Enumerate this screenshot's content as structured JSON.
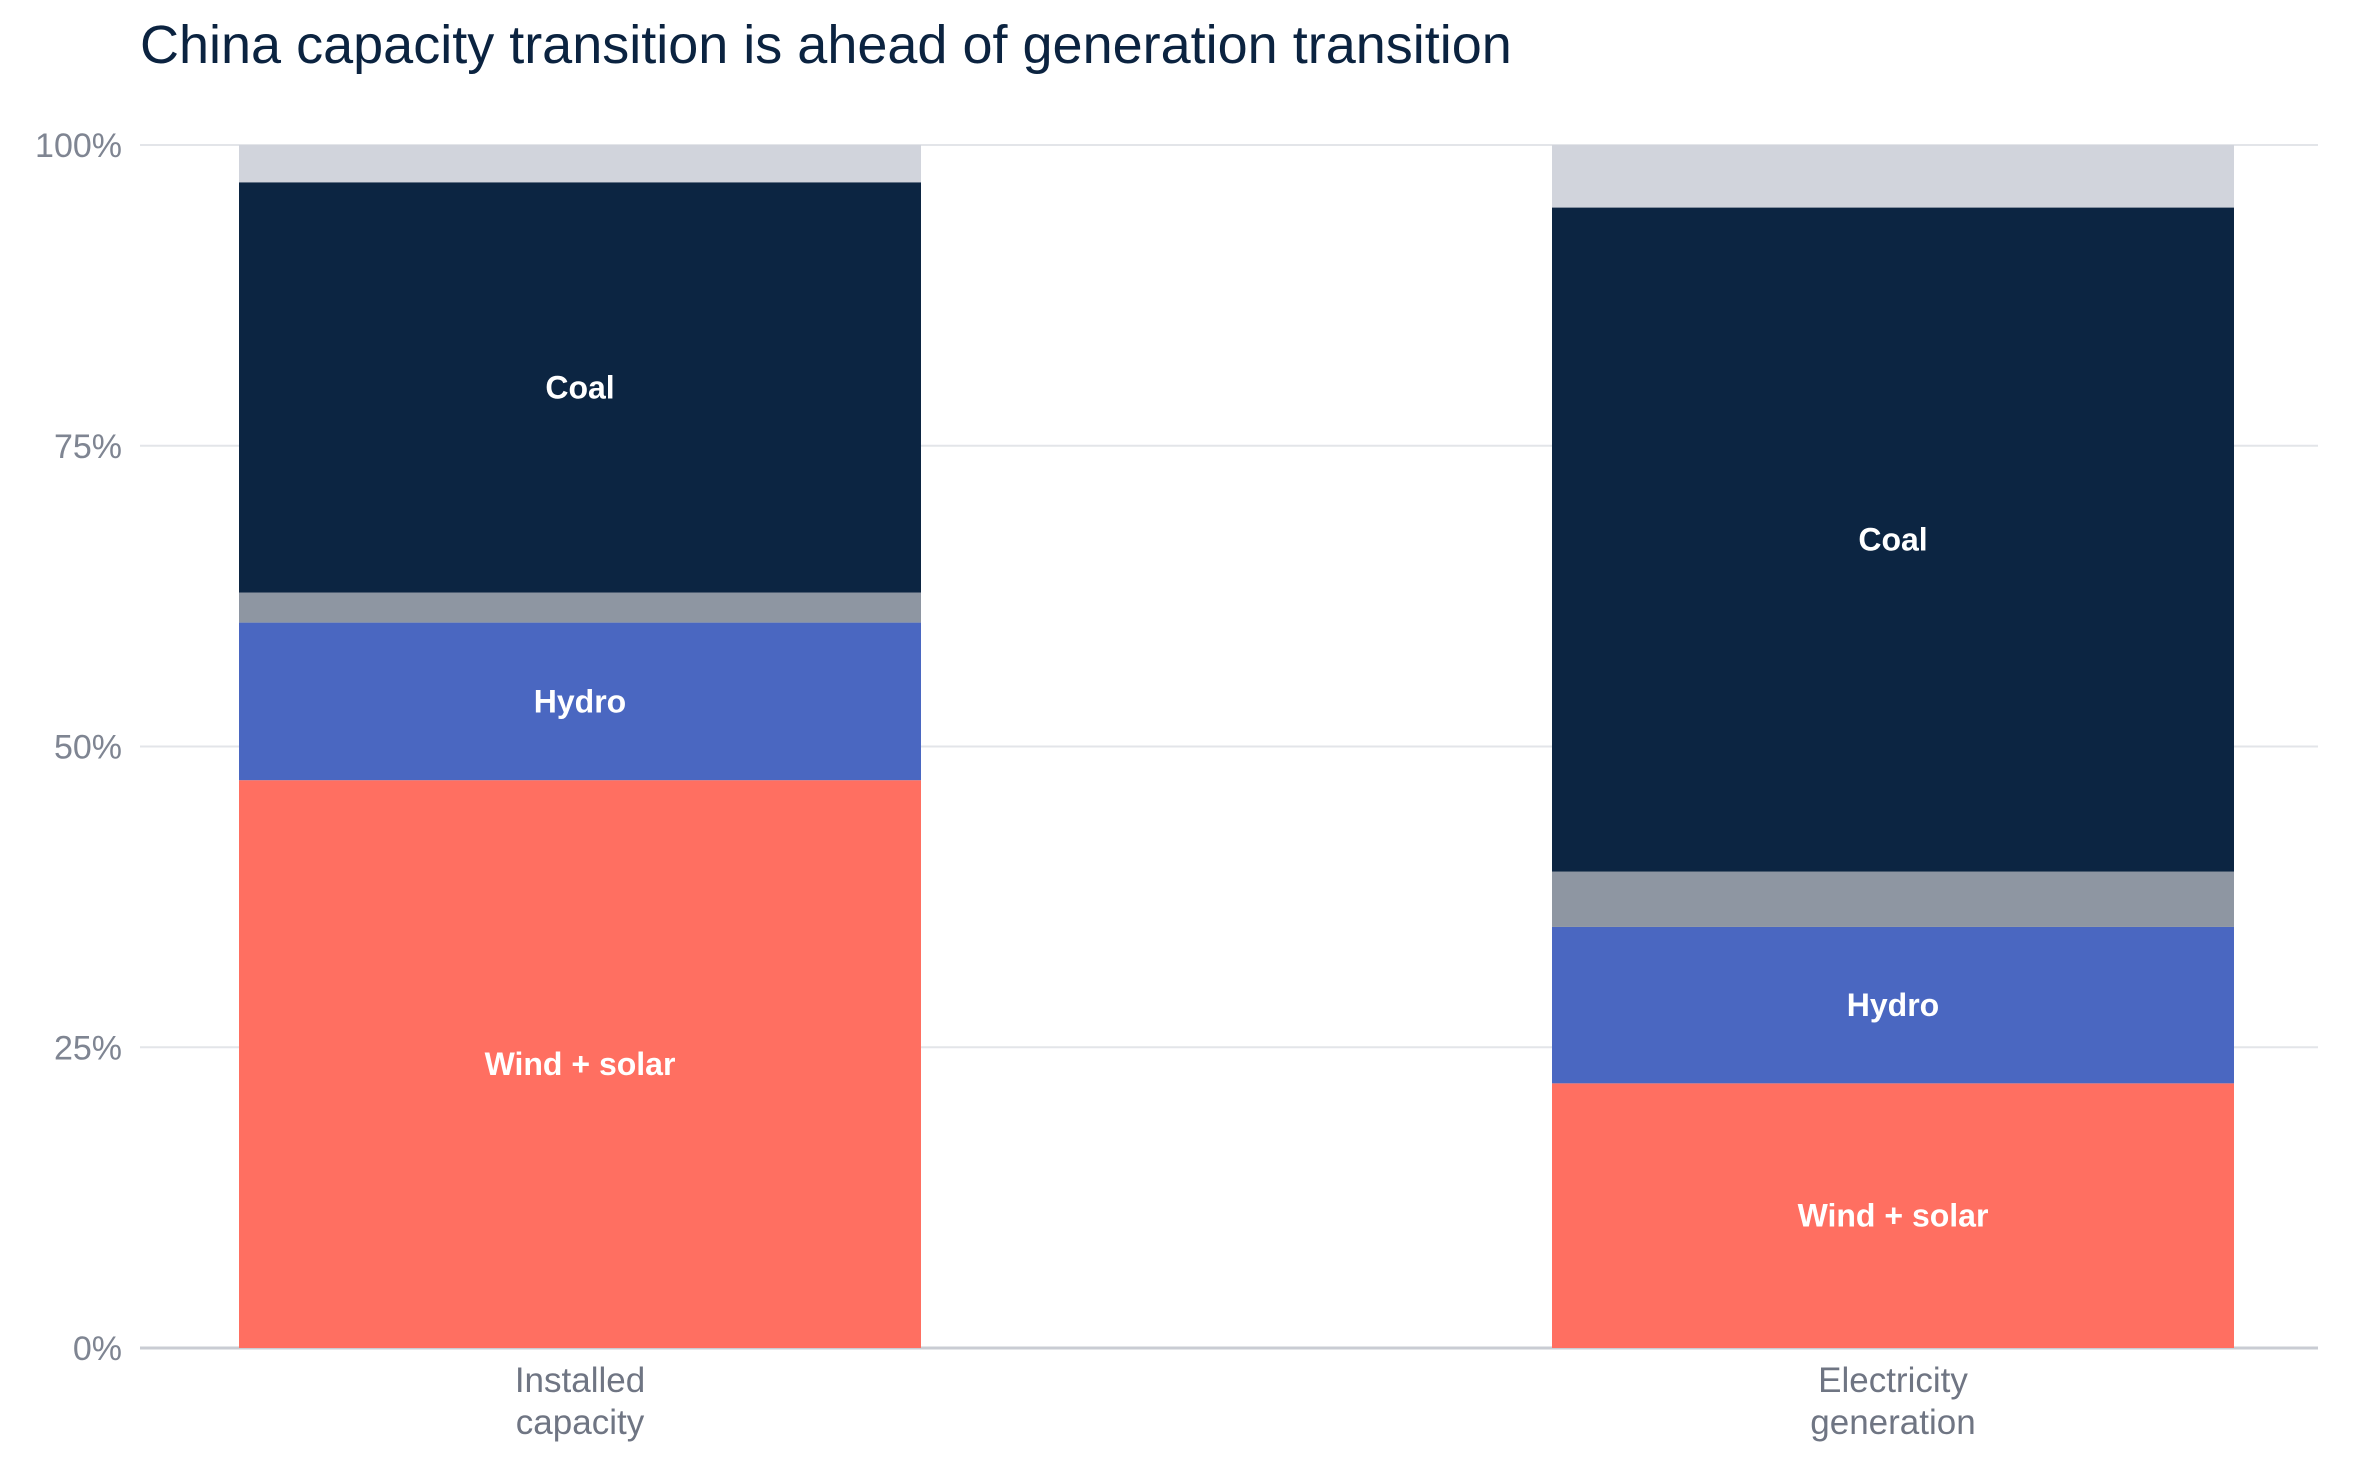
{
  "chart_data": {
    "type": "bar",
    "stacked": true,
    "title": "China capacity transition is ahead of generation transition",
    "xlabel": "",
    "ylabel": "",
    "ylim": [
      0,
      100
    ],
    "yticks": [
      "0%",
      "25%",
      "50%",
      "75%",
      "100%"
    ],
    "ytick_values": [
      0,
      25,
      50,
      75,
      100
    ],
    "grid": true,
    "categories": [
      [
        "Installed",
        "capacity"
      ],
      [
        "Electricity",
        "generation"
      ]
    ],
    "series": [
      {
        "name": "Wind + solar",
        "label": "Wind + solar",
        "color": "#ff6f61",
        "values": [
          47.2,
          22.0
        ]
      },
      {
        "name": "Hydro",
        "label": "Hydro",
        "color": "#4a67c1",
        "values": [
          13.1,
          13.0
        ]
      },
      {
        "name": "",
        "label": "",
        "color": "#8e96a2",
        "values": [
          2.5,
          4.6
        ]
      },
      {
        "name": "Coal",
        "label": "Coal",
        "color": "#0c2542",
        "values": [
          34.1,
          55.2
        ]
      },
      {
        "name": "",
        "label": "",
        "color": "#d1d4dc",
        "values": [
          3.1,
          5.2
        ]
      }
    ]
  }
}
